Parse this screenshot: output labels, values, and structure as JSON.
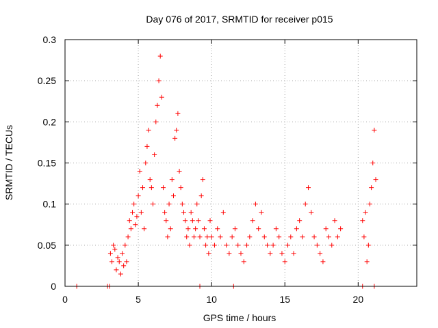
{
  "chart_data": {
    "type": "scatter",
    "title": "Day 076 of 2017, SRMTID for receiver p015",
    "xlabel": "GPS time / hours",
    "ylabel": "SRMTID / TECUs",
    "xlim": [
      0,
      24
    ],
    "ylim": [
      0,
      0.3
    ],
    "grid": true,
    "marker": "+",
    "marker_color": "#ff0000",
    "x_ticks": [
      {
        "value": 0,
        "label": "0"
      },
      {
        "value": 5,
        "label": "5"
      },
      {
        "value": 10,
        "label": "10"
      },
      {
        "value": 15,
        "label": "15"
      },
      {
        "value": 20,
        "label": "20"
      }
    ],
    "y_ticks": [
      {
        "value": 0,
        "label": "0"
      },
      {
        "value": 0.05,
        "label": "0.05"
      },
      {
        "value": 0.1,
        "label": "0.1"
      },
      {
        "value": 0.15,
        "label": "0.15"
      },
      {
        "value": 0.2,
        "label": "0.2"
      },
      {
        "value": 0.25,
        "label": "0.25"
      },
      {
        "value": 0.3,
        "label": "0.3"
      }
    ],
    "series": [
      {
        "name": "p015",
        "points": [
          [
            0.8,
            0
          ],
          [
            2.9,
            0
          ],
          [
            3.05,
            0
          ],
          [
            9.2,
            0
          ],
          [
            11.5,
            0
          ],
          [
            20.3,
            0
          ],
          [
            21.1,
            0
          ],
          [
            3.1,
            0.04
          ],
          [
            3.2,
            0.03
          ],
          [
            3.3,
            0.05
          ],
          [
            3.4,
            0.045
          ],
          [
            3.5,
            0.02
          ],
          [
            3.6,
            0.035
          ],
          [
            3.7,
            0.03
          ],
          [
            3.8,
            0.015
          ],
          [
            3.9,
            0.04
          ],
          [
            4.0,
            0.025
          ],
          [
            4.1,
            0.05
          ],
          [
            4.2,
            0.03
          ],
          [
            4.3,
            0.06
          ],
          [
            4.4,
            0.08
          ],
          [
            4.5,
            0.07
          ],
          [
            4.6,
            0.09
          ],
          [
            4.7,
            0.1
          ],
          [
            4.8,
            0.075
          ],
          [
            4.9,
            0.085
          ],
          [
            5.0,
            0.11
          ],
          [
            5.1,
            0.14
          ],
          [
            5.2,
            0.09
          ],
          [
            5.3,
            0.12
          ],
          [
            5.4,
            0.07
          ],
          [
            5.5,
            0.15
          ],
          [
            5.6,
            0.17
          ],
          [
            5.7,
            0.19
          ],
          [
            5.8,
            0.13
          ],
          [
            5.9,
            0.12
          ],
          [
            6.0,
            0.1
          ],
          [
            6.1,
            0.16
          ],
          [
            6.2,
            0.2
          ],
          [
            6.3,
            0.22
          ],
          [
            6.4,
            0.25
          ],
          [
            6.5,
            0.28
          ],
          [
            6.6,
            0.23
          ],
          [
            6.7,
            0.12
          ],
          [
            6.8,
            0.09
          ],
          [
            6.9,
            0.08
          ],
          [
            7.0,
            0.06
          ],
          [
            7.1,
            0.1
          ],
          [
            7.2,
            0.07
          ],
          [
            7.3,
            0.13
          ],
          [
            7.4,
            0.11
          ],
          [
            7.5,
            0.18
          ],
          [
            7.6,
            0.19
          ],
          [
            7.7,
            0.21
          ],
          [
            7.8,
            0.14
          ],
          [
            7.9,
            0.12
          ],
          [
            8.0,
            0.1
          ],
          [
            8.1,
            0.09
          ],
          [
            8.2,
            0.08
          ],
          [
            8.3,
            0.06
          ],
          [
            8.4,
            0.07
          ],
          [
            8.5,
            0.05
          ],
          [
            8.6,
            0.09
          ],
          [
            8.7,
            0.08
          ],
          [
            8.8,
            0.06
          ],
          [
            8.9,
            0.07
          ],
          [
            9.0,
            0.1
          ],
          [
            9.1,
            0.08
          ],
          [
            9.2,
            0.06
          ],
          [
            9.3,
            0.11
          ],
          [
            9.4,
            0.13
          ],
          [
            9.5,
            0.07
          ],
          [
            9.6,
            0.05
          ],
          [
            9.7,
            0.06
          ],
          [
            9.8,
            0.04
          ],
          [
            9.9,
            0.08
          ],
          [
            10.0,
            0.06
          ],
          [
            10.2,
            0.05
          ],
          [
            10.4,
            0.07
          ],
          [
            10.6,
            0.06
          ],
          [
            10.8,
            0.09
          ],
          [
            11.0,
            0.05
          ],
          [
            11.2,
            0.04
          ],
          [
            11.4,
            0.06
          ],
          [
            11.6,
            0.07
          ],
          [
            11.8,
            0.05
          ],
          [
            12.0,
            0.04
          ],
          [
            12.2,
            0.03
          ],
          [
            12.4,
            0.05
          ],
          [
            12.6,
            0.06
          ],
          [
            12.8,
            0.08
          ],
          [
            13.0,
            0.1
          ],
          [
            13.2,
            0.07
          ],
          [
            13.4,
            0.09
          ],
          [
            13.6,
            0.06
          ],
          [
            13.8,
            0.05
          ],
          [
            14.0,
            0.04
          ],
          [
            14.2,
            0.05
          ],
          [
            14.4,
            0.07
          ],
          [
            14.6,
            0.06
          ],
          [
            14.8,
            0.04
          ],
          [
            15.0,
            0.03
          ],
          [
            15.2,
            0.05
          ],
          [
            15.4,
            0.06
          ],
          [
            15.6,
            0.04
          ],
          [
            15.8,
            0.07
          ],
          [
            16.0,
            0.08
          ],
          [
            16.2,
            0.06
          ],
          [
            16.4,
            0.1
          ],
          [
            16.6,
            0.12
          ],
          [
            16.8,
            0.09
          ],
          [
            17.0,
            0.06
          ],
          [
            17.2,
            0.05
          ],
          [
            17.4,
            0.04
          ],
          [
            17.6,
            0.03
          ],
          [
            17.8,
            0.07
          ],
          [
            18.0,
            0.06
          ],
          [
            18.2,
            0.05
          ],
          [
            18.4,
            0.08
          ],
          [
            18.6,
            0.06
          ],
          [
            18.8,
            0.07
          ],
          [
            20.3,
            0.08
          ],
          [
            20.4,
            0.06
          ],
          [
            20.5,
            0.09
          ],
          [
            20.6,
            0.03
          ],
          [
            20.7,
            0.05
          ],
          [
            20.8,
            0.1
          ],
          [
            20.9,
            0.12
          ],
          [
            21.0,
            0.15
          ],
          [
            21.1,
            0.19
          ],
          [
            21.2,
            0.13
          ]
        ]
      }
    ]
  }
}
